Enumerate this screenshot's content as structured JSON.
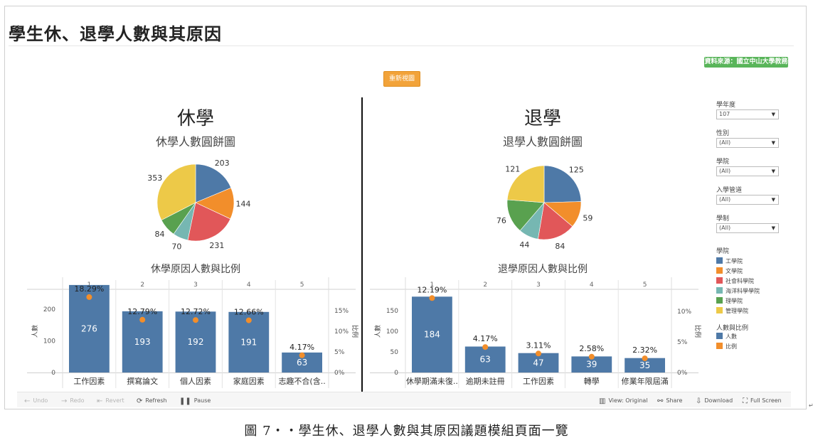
{
  "page": {
    "title": "學生休、退學人數與其原因",
    "source_badge": "資料來源：國立中山大學教務處",
    "reset_button": "重新視圖",
    "caption": "圖 7‧‧學生休、退學人數與其原因議題模組頁面一覽"
  },
  "left_panel": {
    "heading": "休學",
    "pie_title": "休學人數圓餅圖",
    "bar_title": "休學原因人數與比例",
    "y_axis_label": "人數",
    "y2_axis_label": "比例"
  },
  "right_panel": {
    "heading": "退學",
    "pie_title": "退學人數圓餅圖",
    "bar_title": "退學原因人數與比例",
    "y_axis_label": "人數",
    "y2_axis_label": "比例"
  },
  "filters": [
    {
      "label": "學年度",
      "value": "107"
    },
    {
      "label": "性別",
      "value": "(All)"
    },
    {
      "label": "學院",
      "value": "(All)"
    },
    {
      "label": "入學管道",
      "value": "(All)"
    },
    {
      "label": "學制",
      "value": "(All)"
    }
  ],
  "legend_college": {
    "title": "學院",
    "items": [
      {
        "label": "工學院",
        "color": "#4e79a7"
      },
      {
        "label": "文學院",
        "color": "#f28e2b"
      },
      {
        "label": "社會科學院",
        "color": "#e15759"
      },
      {
        "label": "海洋科學學院",
        "color": "#76b7b2"
      },
      {
        "label": "理學院",
        "color": "#59a14f"
      },
      {
        "label": "管理學院",
        "color": "#edc948"
      }
    ]
  },
  "legend_measure": {
    "title": "人數與比例",
    "items": [
      {
        "label": "人數",
        "color": "#4e79a7"
      },
      {
        "label": "比例",
        "color": "#f28e2b"
      }
    ]
  },
  "toolbar": {
    "undo": "Undo",
    "redo": "Redo",
    "revert": "Revert",
    "refresh": "Refresh",
    "pause": "Pause",
    "view": "View: Original",
    "share": "Share",
    "download": "Download",
    "fullscreen": "Full Screen"
  },
  "chart_data": [
    {
      "id": "suspension-pie",
      "type": "pie",
      "title": "休學人數圓餅圖",
      "categories": [
        "工學院",
        "文學院",
        "社會科學院",
        "海洋科學學院",
        "理學院",
        "管理學院"
      ],
      "values": [
        203,
        144,
        231,
        70,
        84,
        353
      ],
      "colors": [
        "#4e79a7",
        "#f28e2b",
        "#e15759",
        "#76b7b2",
        "#59a14f",
        "#edc948"
      ]
    },
    {
      "id": "withdrawal-pie",
      "type": "pie",
      "title": "退學人數圓餅圖",
      "categories": [
        "工學院",
        "文學院",
        "社會科學院",
        "海洋科學學院",
        "理學院",
        "管理學院"
      ],
      "values": [
        125,
        59,
        84,
        44,
        76,
        121
      ],
      "colors": [
        "#4e79a7",
        "#f28e2b",
        "#e15759",
        "#76b7b2",
        "#59a14f",
        "#edc948"
      ]
    },
    {
      "id": "suspension-bar",
      "type": "bar",
      "title": "休學原因人數與比例",
      "ylabel": "人數",
      "y2label": "比例",
      "ylim": [
        0,
        260
      ],
      "yticks": [
        0,
        100,
        200
      ],
      "y2lim": [
        0,
        0.2
      ],
      "y2ticks": [
        "0%",
        "5%",
        "10%",
        "15%"
      ],
      "ranks": [
        "1",
        "2",
        "3",
        "4",
        "5"
      ],
      "categories": [
        "工作因素",
        "撰寫論文",
        "個人因素",
        "家庭因素",
        "志趣不合(含.."
      ],
      "values": [
        276,
        193,
        192,
        191,
        63
      ],
      "ratios": [
        0.1829,
        0.1279,
        0.1272,
        0.1266,
        0.0417
      ],
      "ratio_labels": [
        "18.29%",
        "12.79%",
        "12.72%",
        "12.66%",
        "4.17%"
      ]
    },
    {
      "id": "withdrawal-bar",
      "type": "bar",
      "title": "退學原因人數與比例",
      "ylabel": "人數",
      "y2label": "比例",
      "ylim": [
        0,
        200
      ],
      "yticks": [
        0,
        50,
        100,
        150
      ],
      "y2lim": [
        0,
        0.135
      ],
      "y2ticks": [
        "0%",
        "5%",
        "10%"
      ],
      "ranks": [
        "1",
        "2",
        "3",
        "4",
        "5"
      ],
      "categories": [
        "休學期滿未復..",
        "逾期未註冊",
        "工作因素",
        "轉學",
        "修業年限屆滿"
      ],
      "values": [
        184,
        63,
        47,
        39,
        35
      ],
      "ratios": [
        0.1219,
        0.0417,
        0.0311,
        0.0258,
        0.0232
      ],
      "ratio_labels": [
        "12.19%",
        "4.17%",
        "3.11%",
        "2.58%",
        "2.32%"
      ]
    }
  ]
}
